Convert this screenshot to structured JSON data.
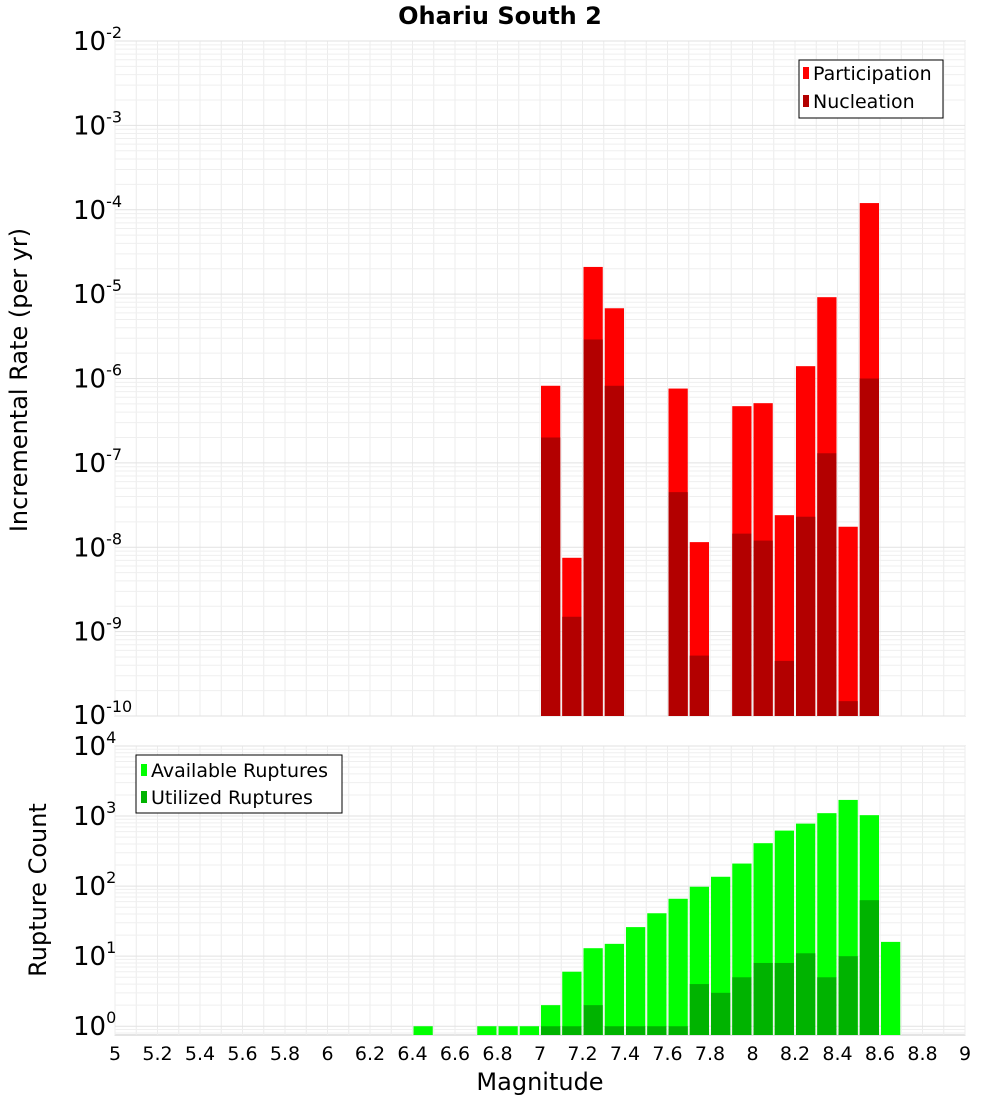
{
  "chart_data": [
    {
      "type": "bar",
      "title": "Ohariu South 2",
      "ylabel": "Incremental Rate (per yr)",
      "xlabel": "",
      "y_scale": "log",
      "ylim": [
        1e-10,
        0.01
      ],
      "xlim": [
        5,
        9
      ],
      "y_ticks": [
        {
          "base": "10",
          "exp": "-2",
          "value": 0.01
        },
        {
          "base": "10",
          "exp": "-3",
          "value": 0.001
        },
        {
          "base": "10",
          "exp": "-4",
          "value": 0.0001
        },
        {
          "base": "10",
          "exp": "-5",
          "value": 1e-05
        },
        {
          "base": "10",
          "exp": "-6",
          "value": 1e-06
        },
        {
          "base": "10",
          "exp": "-7",
          "value": 1e-07
        },
        {
          "base": "10",
          "exp": "-8",
          "value": 1e-08
        },
        {
          "base": "10",
          "exp": "-9",
          "value": 1e-09
        },
        {
          "base": "10",
          "exp": "-10",
          "value": 1e-10
        }
      ],
      "legend": {
        "position": "top-right"
      },
      "series": [
        {
          "name": "Participation",
          "color": "#ff0000",
          "x": [
            7.05,
            7.15,
            7.25,
            7.35,
            7.65,
            7.75,
            7.95,
            8.05,
            8.15,
            8.25,
            8.35,
            8.45,
            8.55
          ],
          "values": [
            8.2e-07,
            7.5e-09,
            2.1e-05,
            6.8e-06,
            7.6e-07,
            1.15e-08,
            4.7e-07,
            5.1e-07,
            2.4e-08,
            1.4e-06,
            9.2e-06,
            1.75e-08,
            0.00012
          ]
        },
        {
          "name": "Nucleation",
          "color": "#b30000",
          "x": [
            7.05,
            7.15,
            7.25,
            7.35,
            7.65,
            7.75,
            7.95,
            8.05,
            8.15,
            8.25,
            8.35,
            8.45,
            8.55
          ],
          "values": [
            2e-07,
            1.5e-09,
            2.9e-06,
            8.2e-07,
            4.5e-08,
            5.2e-10,
            1.45e-08,
            1.2e-08,
            4.5e-10,
            2.3e-08,
            1.3e-07,
            1.5e-10,
            1e-06
          ]
        }
      ]
    },
    {
      "type": "bar",
      "title": "",
      "ylabel": "Rupture Count",
      "xlabel": "Magnitude",
      "y_scale": "log",
      "ylim": [
        0.75,
        10000
      ],
      "xlim": [
        5,
        9
      ],
      "y_ticks": [
        {
          "base": "10",
          "exp": "4",
          "value": 10000
        },
        {
          "base": "10",
          "exp": "3",
          "value": 1000
        },
        {
          "base": "10",
          "exp": "2",
          "value": 100
        },
        {
          "base": "10",
          "exp": "1",
          "value": 10
        },
        {
          "base": "10",
          "exp": "0",
          "value": 1
        }
      ],
      "x_ticks": [
        "5",
        "5.2",
        "5.4",
        "5.6",
        "5.8",
        "6",
        "6.2",
        "6.4",
        "6.6",
        "6.8",
        "7",
        "7.2",
        "7.4",
        "7.6",
        "7.8",
        "8",
        "8.2",
        "8.4",
        "8.6",
        "8.8",
        "9"
      ],
      "legend": {
        "position": "top-left"
      },
      "series": [
        {
          "name": "Available Ruptures",
          "color": "#00ff00",
          "x": [
            6.45,
            6.75,
            6.85,
            6.95,
            7.05,
            7.15,
            7.25,
            7.35,
            7.45,
            7.55,
            7.65,
            7.75,
            7.85,
            7.95,
            8.05,
            8.15,
            8.25,
            8.35,
            8.45,
            8.55,
            8.65
          ],
          "values": [
            1,
            1,
            1,
            1,
            2,
            6,
            13,
            15,
            26,
            41,
            66,
            98,
            136,
            210,
            410,
            620,
            780,
            1100,
            1700,
            1030,
            16
          ]
        },
        {
          "name": "Utilized Ruptures",
          "color": "#00b300",
          "x": [
            7.05,
            7.15,
            7.25,
            7.35,
            7.45,
            7.55,
            7.65,
            7.75,
            7.85,
            7.95,
            8.05,
            8.15,
            8.25,
            8.35,
            8.45,
            8.55
          ],
          "values": [
            1,
            1,
            2,
            1,
            1,
            1,
            1,
            4,
            3,
            5,
            8,
            8,
            11,
            5,
            10,
            63
          ]
        }
      ]
    }
  ]
}
